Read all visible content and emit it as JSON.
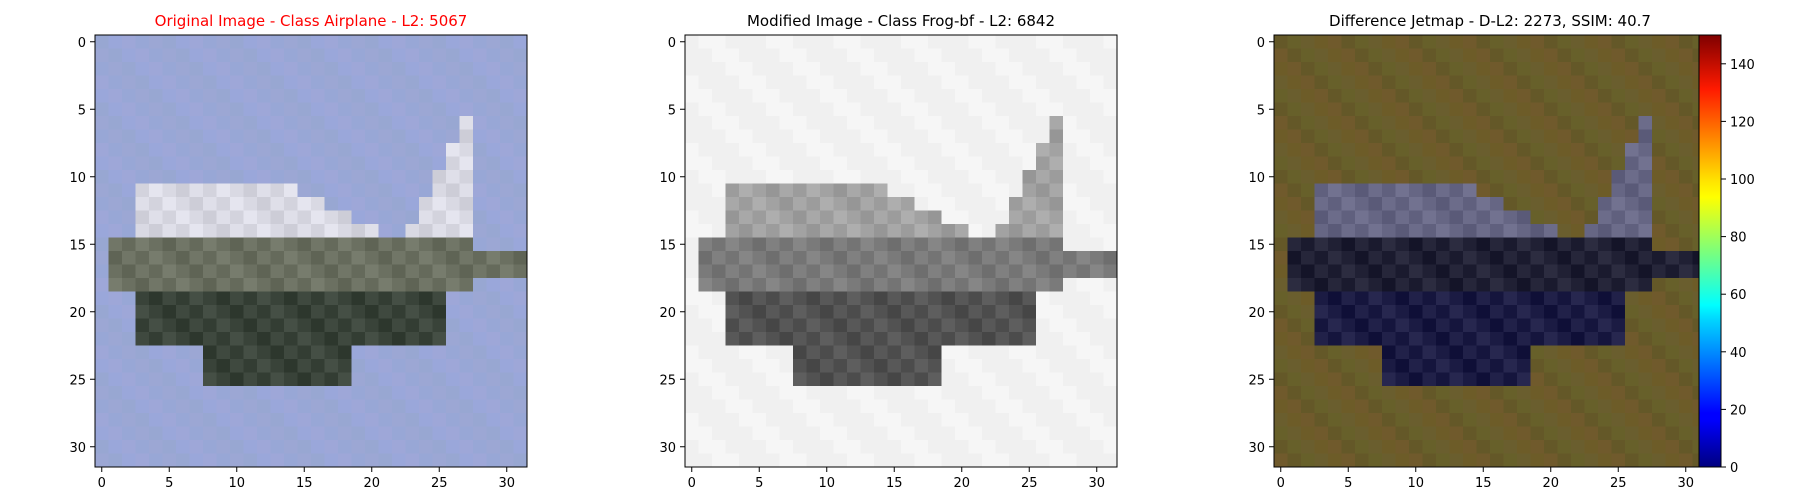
{
  "chart_data": [
    {
      "type": "heatmap",
      "title": "Original Image - Class Airplane - L2: 5067",
      "title_color": "#ff0000",
      "image_size": [
        32,
        32
      ],
      "x_ticks": [
        0,
        5,
        10,
        15,
        20,
        25,
        30
      ],
      "y_ticks": [
        0,
        5,
        10,
        15,
        20,
        25,
        30
      ],
      "background_color": "#9ba8d4",
      "object": "airplane silhouette, white-gray fuselage with dark underside",
      "colormap": "rgb"
    },
    {
      "type": "heatmap",
      "title": "Modified Image - Class Frog-bf - L2: 6842",
      "title_color": "#000000",
      "image_size": [
        32,
        32
      ],
      "x_ticks": [
        0,
        5,
        10,
        15,
        20,
        25,
        30
      ],
      "y_ticks": [
        0,
        5,
        10,
        15,
        20,
        25,
        30
      ],
      "background_color": "#f4f4f4",
      "object": "grayscale airplane silhouette",
      "colormap": "gray"
    },
    {
      "type": "heatmap",
      "title": "Difference Jetmap - D-L2: 2273, SSIM: 40.7",
      "title_color": "#000000",
      "image_size": [
        32,
        32
      ],
      "x_ticks": [
        0,
        5,
        10,
        15,
        20,
        25,
        30
      ],
      "y_ticks": [
        0,
        5,
        10,
        15,
        20,
        25,
        30
      ],
      "background_color": "#6b5a2c",
      "object": "dark blue/black airplane outline on olive background",
      "colormap": "jet",
      "colorbar": {
        "min": 0,
        "max": 150,
        "ticks": [
          0,
          20,
          40,
          60,
          80,
          100,
          120,
          140
        ]
      }
    }
  ]
}
